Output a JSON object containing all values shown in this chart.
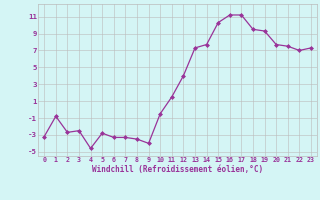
{
  "x": [
    0,
    1,
    2,
    3,
    4,
    5,
    6,
    7,
    8,
    9,
    10,
    11,
    12,
    13,
    14,
    15,
    16,
    17,
    18,
    19,
    20,
    21,
    22,
    23
  ],
  "y": [
    -3.2,
    -0.8,
    -2.7,
    -2.5,
    -4.6,
    -2.8,
    -3.3,
    -3.3,
    -3.5,
    -4.0,
    -0.5,
    1.5,
    4.0,
    7.3,
    7.7,
    10.3,
    11.2,
    11.2,
    9.5,
    9.3,
    7.7,
    7.5,
    7.0,
    7.3
  ],
  "xlim": [
    -0.5,
    23.5
  ],
  "ylim": [
    -5.5,
    12.5
  ],
  "yticks": [
    -5,
    -3,
    -1,
    1,
    3,
    5,
    7,
    9,
    11
  ],
  "xticks": [
    0,
    1,
    2,
    3,
    4,
    5,
    6,
    7,
    8,
    9,
    10,
    11,
    12,
    13,
    14,
    15,
    16,
    17,
    18,
    19,
    20,
    21,
    22,
    23
  ],
  "xlabel": "Windchill (Refroidissement éolien,°C)",
  "line_color": "#993399",
  "marker": "D",
  "marker_size": 2.0,
  "background_color": "#d4f5f5",
  "grid_color": "#bbbbbb",
  "tick_label_color": "#993399",
  "axis_label_color": "#993399",
  "label_fontsize": 5.5,
  "tick_fontsize": 4.8
}
